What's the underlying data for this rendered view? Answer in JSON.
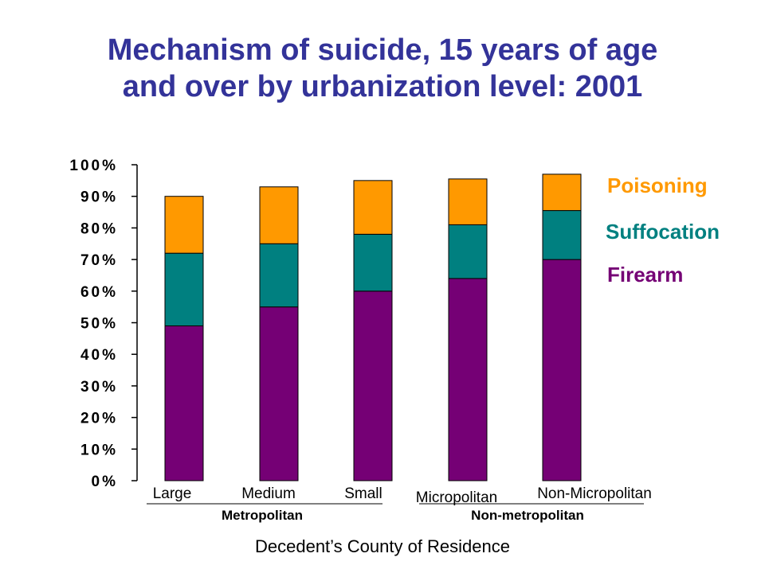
{
  "title_line1": "Mechanism of suicide, 15 years of age",
  "title_line2": "and over by urbanization level: 2001",
  "colors": {
    "title": "#333399",
    "firearm": "#750075",
    "suffocation": "#008080",
    "poisoning": "#FF9900"
  },
  "chart_data": {
    "type": "bar",
    "stacked": true,
    "categories": [
      "Large",
      "Medium",
      "Small",
      "Micropolitan",
      "Non-Micropolitan"
    ],
    "category_groups": [
      {
        "label": "Metropolitan",
        "categories": [
          "Large",
          "Medium",
          "Small"
        ]
      },
      {
        "label": "Non-metropolitan",
        "categories": [
          "Micropolitan",
          "Non-Micropolitan"
        ]
      }
    ],
    "series": [
      {
        "name": "Firearm",
        "color": "#750075",
        "values": [
          49,
          55,
          60,
          64,
          70
        ]
      },
      {
        "name": "Suffocation",
        "color": "#008080",
        "values": [
          23,
          20,
          18,
          17,
          15.5
        ]
      },
      {
        "name": "Poisoning",
        "color": "#FF9900",
        "values": [
          18,
          18,
          17,
          14.5,
          11.5
        ]
      }
    ],
    "xlabel": "Decedent’s County of Residence",
    "ylabel": "",
    "ylim": [
      0,
      100
    ],
    "yticks": [
      "0%",
      "10%",
      "20%",
      "30%",
      "40%",
      "50%",
      "60%",
      "70%",
      "80%",
      "90%",
      "100%"
    ],
    "legend_position": "right",
    "grid": false
  }
}
